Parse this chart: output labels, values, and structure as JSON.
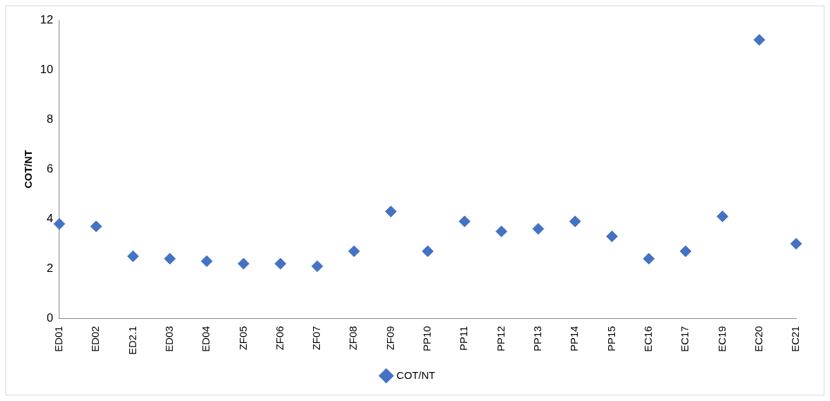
{
  "chart_data": {
    "type": "scatter",
    "ylabel": "COT/NT",
    "categories": [
      "ED01",
      "ED02",
      "ED2.1",
      "ED03",
      "ED04",
      "ZF05",
      "ZF06",
      "ZF07",
      "ZF08",
      "ZF09",
      "PP10",
      "PP11",
      "PP12",
      "PP13",
      "PP14",
      "PP15",
      "EC16",
      "EC17",
      "EC19",
      "EC20",
      "EC21"
    ],
    "series": [
      {
        "name": "COT/NT",
        "color": "#4472c4",
        "values": [
          3.8,
          3.7,
          2.5,
          2.4,
          2.3,
          2.2,
          2.2,
          2.1,
          2.7,
          4.3,
          2.7,
          3.9,
          3.5,
          3.6,
          3.9,
          3.3,
          2.4,
          2.7,
          4.1,
          11.2,
          3.0
        ]
      }
    ],
    "ylim": [
      0,
      12
    ],
    "yticks": [
      0,
      2,
      4,
      6,
      8,
      10,
      12
    ],
    "grid": false,
    "legend": "bottom",
    "marker": "diamond"
  }
}
